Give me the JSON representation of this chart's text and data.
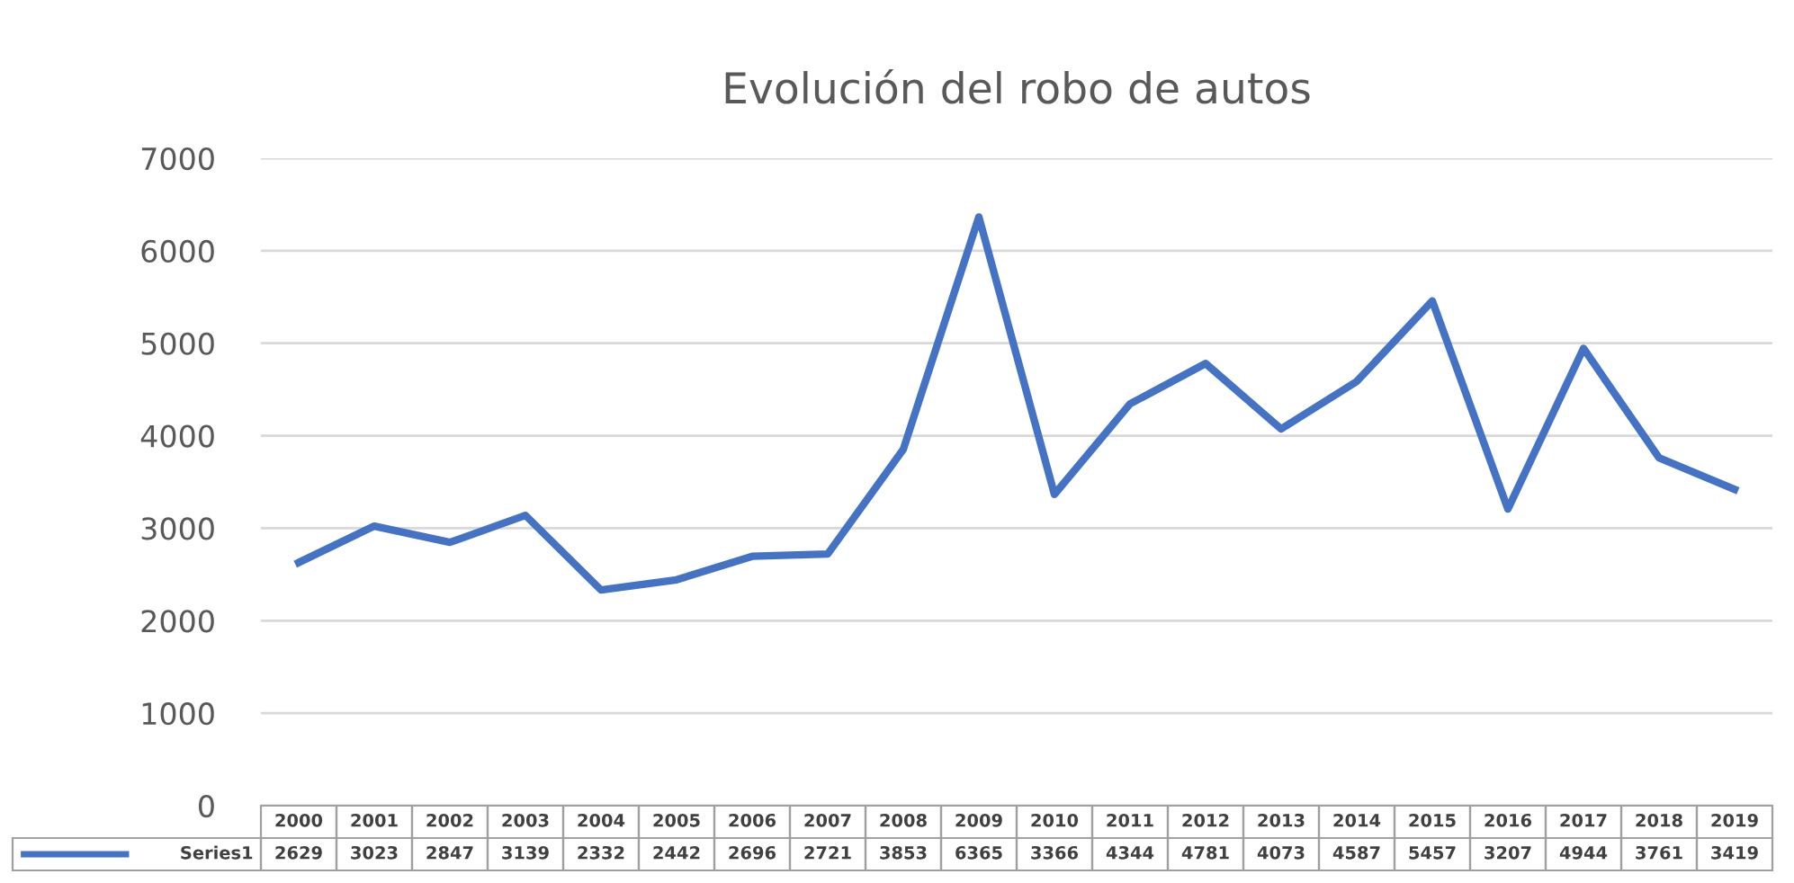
{
  "chart_data": {
    "type": "line",
    "title": "Evolución del robo de autos",
    "categories": [
      "2000",
      "2001",
      "2002",
      "2003",
      "2004",
      "2005",
      "2006",
      "2007",
      "2008",
      "2009",
      "2010",
      "2011",
      "2012",
      "2013",
      "2014",
      "2015",
      "2016",
      "2017",
      "2018",
      "2019"
    ],
    "series": [
      {
        "name": "Series1",
        "color": "#4472c4",
        "values": [
          2629,
          3023,
          2847,
          3139,
          2332,
          2442,
          2696,
          2721,
          3853,
          6365,
          3366,
          4344,
          4781,
          4073,
          4587,
          5457,
          3207,
          4944,
          3761,
          3419
        ]
      }
    ],
    "ylim": [
      0,
      7000
    ],
    "yticks": [
      0,
      1000,
      2000,
      3000,
      4000,
      5000,
      6000,
      7000
    ],
    "grid": "y",
    "data_labels": true,
    "marker": "none",
    "line_style": "solid"
  }
}
